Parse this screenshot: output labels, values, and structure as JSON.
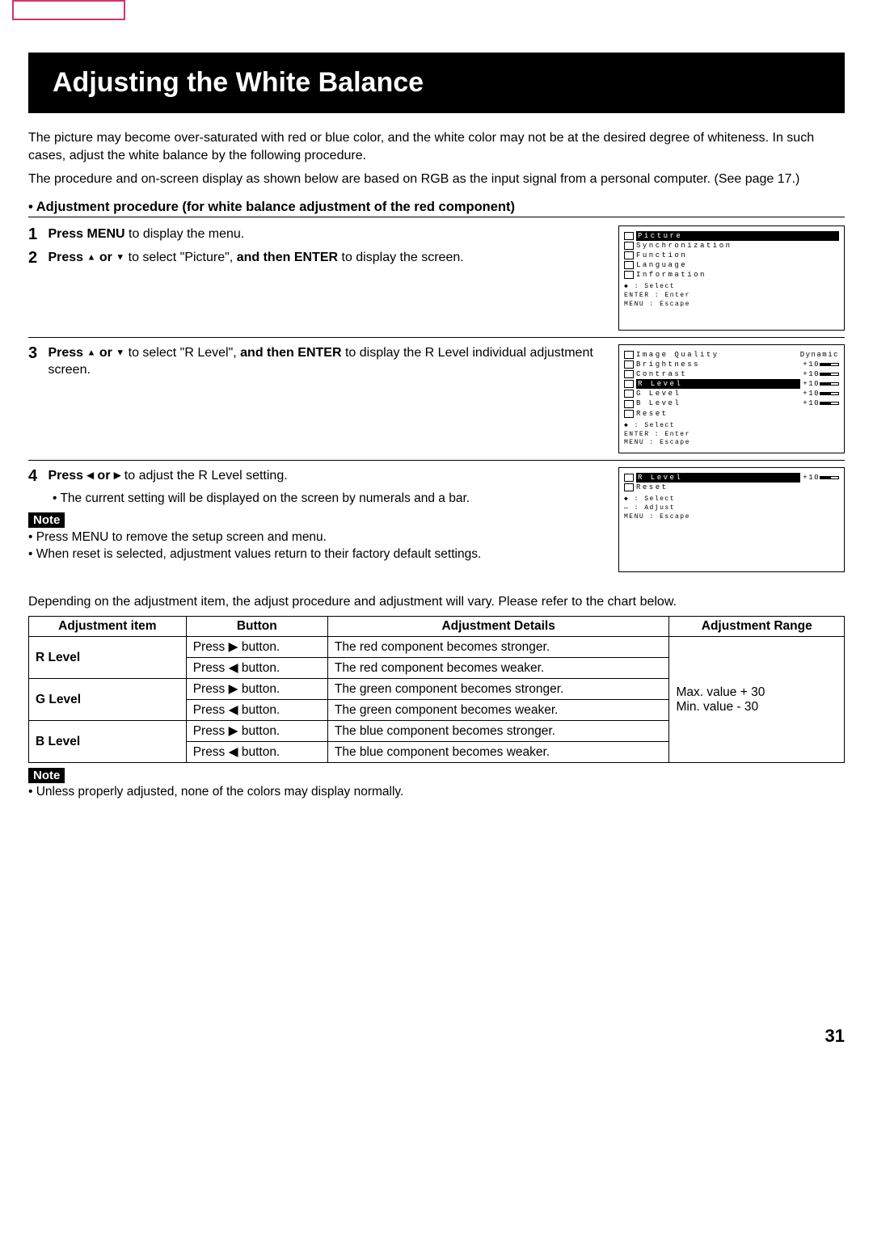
{
  "title": "Adjusting the White Balance",
  "intro1": "The picture may become over-saturated with red or blue color, and the white color may not be at the desired degree of whiteness. In such cases, adjust the white balance by the following procedure.",
  "intro2": "The procedure and on-screen display as shown below are based on RGB as the input signal from a personal computer. (See page 17.)",
  "sectionHead": "• Adjustment procedure (for white balance adjustment of the red component)",
  "step1": {
    "num": "1",
    "bold1": "Press MENU",
    "rest": " to display the menu."
  },
  "step2": {
    "num": "2",
    "bold1": "Press ",
    "up": "▲",
    "or": " or ",
    "down": "▼",
    "rest1": " to select \"Picture\", ",
    "bold2": "and then ENTER",
    "rest2": " to display the screen."
  },
  "step3": {
    "num": "3",
    "bold1": "Press ",
    "up": "▲",
    "or": " or ",
    "down": "▼",
    "rest1": " to select \"R Level\", ",
    "bold2": "and then ENTER",
    "rest2": " to display the R Level individual adjustment screen."
  },
  "step4": {
    "num": "4",
    "bold1": "Press ",
    "left": "◀",
    "or": " or ",
    "right": "▶",
    "rest1": " to adjust the R Level setting.",
    "bullet": "• The current setting will be displayed on the screen by numerals and a bar."
  },
  "noteLabel": "Note",
  "note1a": "• Press MENU to remove the setup screen and menu.",
  "note1b": "• When reset is selected, adjustment values return to their factory default settings.",
  "osd1": {
    "items": [
      "Picture",
      "Synchronization",
      "Function",
      "Language",
      "Information"
    ],
    "footer": [
      "◆     : Select",
      "ENTER : Enter",
      "MENU  : Escape"
    ]
  },
  "osd2": {
    "head": {
      "label": "Image Quality",
      "val": "Dynamic"
    },
    "rows": [
      {
        "label": "Brightness",
        "val": "+10"
      },
      {
        "label": "Contrast",
        "val": "+10"
      },
      {
        "label": "R Level",
        "val": "+10",
        "hl": true
      },
      {
        "label": "G Level",
        "val": "+10"
      },
      {
        "label": "B Level",
        "val": "+10"
      },
      {
        "label": "Reset",
        "val": ""
      }
    ],
    "footer": [
      "◆     : Select",
      "ENTER : Enter",
      "MENU  : Escape"
    ]
  },
  "osd3": {
    "rows": [
      {
        "label": "R Level",
        "val": "+10",
        "hl": true
      },
      {
        "label": "Reset",
        "val": ""
      }
    ],
    "footer": [
      "◆     : Select",
      "↔     : Adjust",
      "MENU  : Escape"
    ]
  },
  "chartIntro": "Depending on the adjustment item, the adjust procedure and adjustment will vary. Please refer to the chart below.",
  "table": {
    "headers": [
      "Adjustment item",
      "Button",
      "Adjustment Details",
      "Adjustment Range"
    ],
    "range": {
      "max": "Max. value    + 30",
      "min": "Min. value     - 30"
    },
    "rows": [
      {
        "item": "R Level",
        "btn1": "Press ▶ button.",
        "det1": "The red component becomes stronger.",
        "btn2": "Press ◀ button.",
        "det2": "The red component becomes weaker."
      },
      {
        "item": "G Level",
        "btn1": "Press ▶ button.",
        "det1": "The green component becomes stronger.",
        "btn2": "Press ◀ button.",
        "det2": "The green component becomes weaker."
      },
      {
        "item": "B Level",
        "btn1": "Press ▶ button.",
        "det1": "The blue component becomes stronger.",
        "btn2": "Press ◀ button.",
        "det2": "The blue component becomes weaker."
      }
    ]
  },
  "note2": "• Unless properly adjusted, none of the colors may display normally.",
  "pageNum": "31"
}
